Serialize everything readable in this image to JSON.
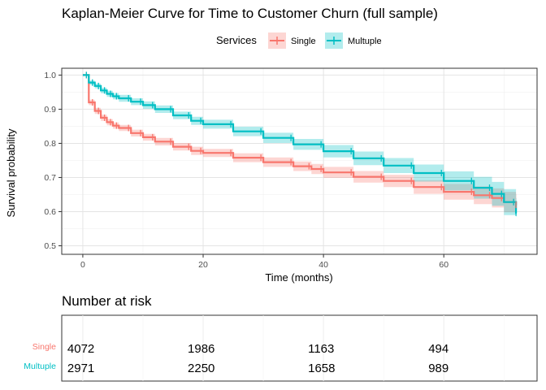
{
  "chart_data": {
    "type": "line",
    "title": "Kaplan-Meier Curve for Time to Customer Churn (full sample)",
    "xlabel": "Time (months)",
    "ylabel": "Survival probability",
    "xlim": [
      -3.5,
      75.5
    ],
    "ylim": [
      0.475,
      1.02
    ],
    "x_ticks": [
      0,
      20,
      40,
      60
    ],
    "y_ticks": [
      0.5,
      0.6,
      0.7,
      0.8,
      0.9,
      1.0
    ],
    "y_tick_labels": [
      "0.5",
      "0.6",
      "0.7",
      "0.8",
      "0.9",
      "1.0"
    ],
    "grid": true,
    "legend": {
      "title": "Services",
      "placement": "top"
    },
    "series": [
      {
        "name": "Single",
        "color": "#F8766D",
        "band_color": "#F8766D",
        "x": [
          0,
          1,
          2,
          3,
          4,
          5,
          6,
          8,
          10,
          12,
          15,
          18,
          20,
          25,
          30,
          35,
          38,
          40,
          45,
          50,
          55,
          60,
          65,
          68,
          70,
          72
        ],
        "y": [
          1.0,
          0.92,
          0.895,
          0.875,
          0.862,
          0.852,
          0.845,
          0.83,
          0.818,
          0.805,
          0.79,
          0.778,
          0.772,
          0.758,
          0.745,
          0.733,
          0.725,
          0.715,
          0.702,
          0.69,
          0.672,
          0.658,
          0.648,
          0.64,
          0.628,
          0.62
        ],
        "lower": [
          1.0,
          0.912,
          0.886,
          0.866,
          0.853,
          0.843,
          0.836,
          0.82,
          0.808,
          0.794,
          0.779,
          0.766,
          0.76,
          0.745,
          0.731,
          0.719,
          0.71,
          0.699,
          0.685,
          0.672,
          0.652,
          0.635,
          0.622,
          0.612,
          0.598,
          0.588
        ],
        "upper": [
          1.0,
          0.928,
          0.904,
          0.884,
          0.871,
          0.861,
          0.854,
          0.84,
          0.828,
          0.816,
          0.801,
          0.79,
          0.784,
          0.771,
          0.759,
          0.747,
          0.74,
          0.731,
          0.719,
          0.708,
          0.692,
          0.681,
          0.674,
          0.668,
          0.658,
          0.652
        ]
      },
      {
        "name": "Multuple",
        "color": "#00BFC4",
        "band_color": "#00BFC4",
        "x": [
          0,
          1,
          2,
          3,
          4,
          5,
          6,
          8,
          10,
          12,
          15,
          18,
          20,
          25,
          30,
          35,
          40,
          45,
          50,
          55,
          60,
          65,
          68,
          70,
          72
        ],
        "y": [
          1.0,
          0.978,
          0.968,
          0.955,
          0.945,
          0.938,
          0.932,
          0.922,
          0.912,
          0.9,
          0.882,
          0.866,
          0.856,
          0.835,
          0.816,
          0.797,
          0.777,
          0.756,
          0.735,
          0.713,
          0.69,
          0.67,
          0.652,
          0.628,
          0.597
        ],
        "lower": [
          1.0,
          0.972,
          0.961,
          0.947,
          0.936,
          0.929,
          0.922,
          0.912,
          0.901,
          0.889,
          0.871,
          0.854,
          0.843,
          0.821,
          0.801,
          0.781,
          0.759,
          0.736,
          0.713,
          0.688,
          0.662,
          0.638,
          0.617,
          0.59,
          0.585
        ],
        "upper": [
          1.0,
          0.984,
          0.975,
          0.963,
          0.954,
          0.947,
          0.942,
          0.932,
          0.923,
          0.911,
          0.893,
          0.878,
          0.869,
          0.849,
          0.831,
          0.813,
          0.795,
          0.776,
          0.757,
          0.738,
          0.718,
          0.702,
          0.687,
          0.666,
          0.64
        ]
      }
    ]
  },
  "risk_table": {
    "title": "Number at risk",
    "times": [
      0,
      20,
      40,
      60
    ],
    "rows": [
      {
        "label": "Single",
        "color": "#F8766D",
        "values": [
          "4072",
          "1986",
          "1163",
          "494"
        ]
      },
      {
        "label": "Multuple",
        "color": "#00BFC4",
        "values": [
          "2971",
          "2250",
          "1658",
          "989"
        ]
      }
    ]
  }
}
